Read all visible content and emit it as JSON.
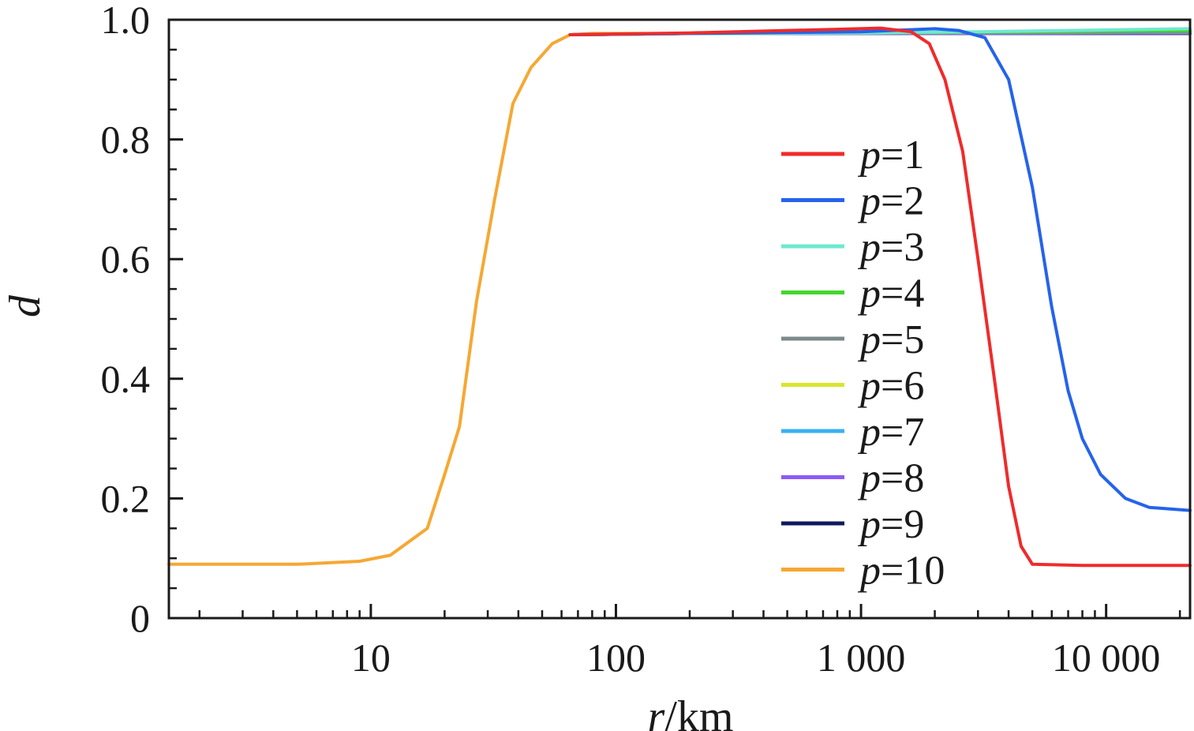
{
  "chart_data": {
    "type": "line",
    "title": "",
    "xscale": "log",
    "xlim": [
      1.5,
      22000
    ],
    "ylim": [
      0,
      1.0
    ],
    "xlabel": {
      "var": "r",
      "unit": "/km"
    },
    "ylabel": "d",
    "xticks": [
      {
        "value": 10,
        "label": "10"
      },
      {
        "value": 100,
        "label": "100"
      },
      {
        "value": 1000,
        "label": "1 000"
      },
      {
        "value": 10000,
        "label": "10 000"
      }
    ],
    "yticks": [
      {
        "value": 0,
        "label": "0"
      },
      {
        "value": 0.2,
        "label": "0.2"
      },
      {
        "value": 0.4,
        "label": "0.4"
      },
      {
        "value": 0.6,
        "label": "0.6"
      },
      {
        "value": 0.8,
        "label": "0.8"
      },
      {
        "value": 1.0,
        "label": "1.0"
      }
    ],
    "legend_position": "center-right",
    "series": [
      {
        "name": "p=10",
        "legend_var": "p",
        "legend_eq": "=10",
        "color": "#f5a833",
        "x": [
          1.5,
          5,
          9,
          12,
          17,
          20,
          23,
          27,
          32,
          38,
          45,
          55,
          65,
          80,
          200,
          1000,
          22000
        ],
        "y": [
          0.09,
          0.09,
          0.095,
          0.105,
          0.15,
          0.24,
          0.32,
          0.53,
          0.7,
          0.86,
          0.92,
          0.96,
          0.975,
          0.977,
          0.977,
          0.977,
          0.977
        ]
      },
      {
        "name": "p=9",
        "legend_var": "p",
        "legend_eq": "=9",
        "color": "#0f1a5c",
        "x": [
          65,
          200,
          1000,
          22000
        ],
        "y": [
          0.975,
          0.977,
          0.977,
          0.977
        ]
      },
      {
        "name": "p=8",
        "legend_var": "p",
        "legend_eq": "=8",
        "color": "#8b5cf6",
        "x": [
          65,
          200,
          1000,
          22000
        ],
        "y": [
          0.975,
          0.977,
          0.977,
          0.978
        ]
      },
      {
        "name": "p=7",
        "legend_var": "p",
        "legend_eq": "=7",
        "color": "#3ab0f0",
        "x": [
          65,
          200,
          1000,
          22000
        ],
        "y": [
          0.975,
          0.977,
          0.978,
          0.979
        ]
      },
      {
        "name": "p=6",
        "legend_var": "p",
        "legend_eq": "=6",
        "color": "#d8e62e",
        "x": [
          65,
          200,
          1000,
          22000
        ],
        "y": [
          0.975,
          0.977,
          0.978,
          0.98
        ]
      },
      {
        "name": "p=5",
        "legend_var": "p",
        "legend_eq": "=5",
        "color": "#7d8a8a",
        "x": [
          65,
          200,
          1000,
          22000
        ],
        "y": [
          0.975,
          0.977,
          0.978,
          0.98
        ]
      },
      {
        "name": "p=4",
        "legend_var": "p",
        "legend_eq": "=4",
        "color": "#44d62c",
        "x": [
          65,
          200,
          1000,
          22000
        ],
        "y": [
          0.975,
          0.977,
          0.978,
          0.982
        ]
      },
      {
        "name": "p=3",
        "legend_var": "p",
        "legend_eq": "=3",
        "color": "#6fe8cf",
        "x": [
          65,
          200,
          1000,
          3000,
          22000
        ],
        "y": [
          0.975,
          0.977,
          0.978,
          0.98,
          0.985
        ]
      },
      {
        "name": "p=2",
        "legend_var": "p",
        "legend_eq": "=2",
        "color": "#2563eb",
        "x": [
          65,
          200,
          1000,
          2000,
          2500,
          3200,
          4000,
          5000,
          6000,
          7000,
          8000,
          9500,
          12000,
          15000,
          22000
        ],
        "y": [
          0.975,
          0.977,
          0.98,
          0.985,
          0.982,
          0.97,
          0.9,
          0.72,
          0.52,
          0.38,
          0.3,
          0.24,
          0.2,
          0.185,
          0.18
        ]
      },
      {
        "name": "p=1",
        "legend_var": "p",
        "legend_eq": "=1",
        "color": "#ef2b2b",
        "x": [
          65,
          200,
          800,
          1200,
          1600,
          1900,
          2200,
          2600,
          3000,
          3500,
          4000,
          4500,
          5000,
          8000,
          22000
        ],
        "y": [
          0.975,
          0.978,
          0.984,
          0.986,
          0.98,
          0.96,
          0.9,
          0.78,
          0.6,
          0.4,
          0.22,
          0.12,
          0.09,
          0.088,
          0.088
        ]
      }
    ]
  }
}
